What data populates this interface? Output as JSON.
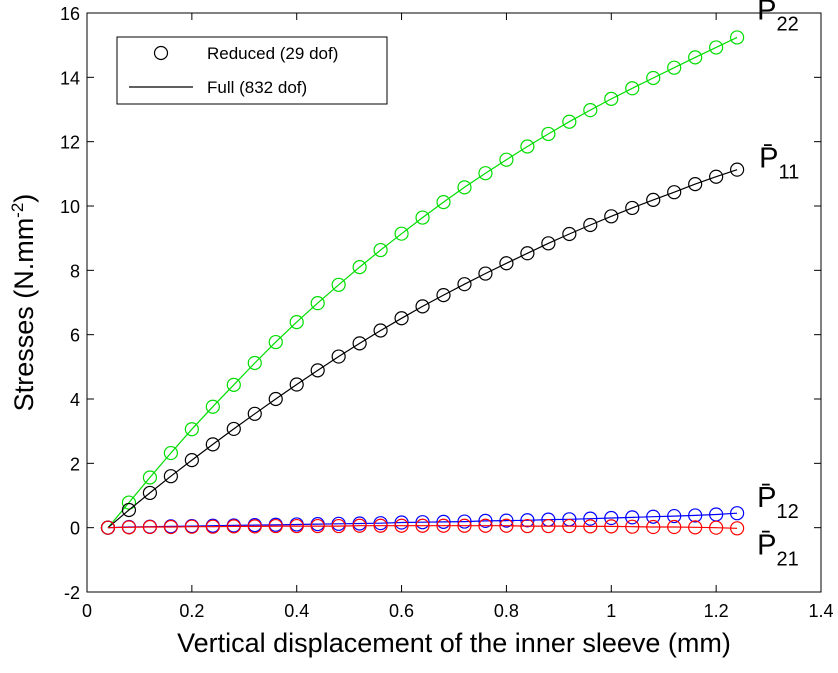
{
  "chart_data": {
    "type": "line",
    "xlabel": "Vertical displacement of the inner sleeve (mm)",
    "ylabel": {
      "main": "Stresses (N.mm",
      "sup": "-2",
      "close": ")"
    },
    "xlim": [
      0,
      1.4
    ],
    "ylim": [
      -2,
      16
    ],
    "x_ticks": [
      0,
      0.2,
      0.4,
      0.6,
      0.8,
      1,
      1.2,
      1.4
    ],
    "x_tick_labels": [
      "0",
      "0.2",
      "0.4",
      "0.6",
      "0.8",
      "1",
      "1.2",
      "1.4"
    ],
    "y_ticks": [
      -2,
      0,
      2,
      4,
      6,
      8,
      10,
      12,
      14,
      16
    ],
    "y_tick_labels": [
      "-2",
      "0",
      "2",
      "4",
      "6",
      "8",
      "10",
      "12",
      "14",
      "16"
    ],
    "grid": false,
    "legend": {
      "placement": "top-left",
      "entries": [
        {
          "label": "Reduced (29 dof)",
          "style": "circle-marker"
        },
        {
          "label": "Full (832 dof)",
          "style": "line"
        }
      ]
    },
    "x": [
      0.04,
      0.08,
      0.12,
      0.16,
      0.2,
      0.24,
      0.28,
      0.32,
      0.36,
      0.4,
      0.44,
      0.48,
      0.52,
      0.56,
      0.6,
      0.64,
      0.68,
      0.72,
      0.76,
      0.8,
      0.84,
      0.88,
      0.92,
      0.96,
      1.0,
      1.04,
      1.08,
      1.12,
      1.16,
      1.2,
      1.24
    ],
    "series": [
      {
        "label_main": "P̄",
        "label_sub": "22",
        "label_anchor": "end",
        "color": "#00dd00",
        "values": [
          0,
          0.78,
          1.56,
          2.32,
          3.06,
          3.76,
          4.44,
          5.12,
          5.77,
          6.39,
          6.98,
          7.55,
          8.1,
          8.63,
          9.14,
          9.64,
          10.12,
          10.58,
          11.02,
          11.44,
          11.85,
          12.24,
          12.62,
          12.98,
          13.33,
          13.66,
          13.98,
          14.3,
          14.62,
          14.93,
          15.24
        ]
      },
      {
        "label_main": "P̄",
        "label_sub": "11",
        "label_anchor": "end",
        "color": "#000000",
        "values": [
          0,
          0.55,
          1.08,
          1.6,
          2.1,
          2.59,
          3.07,
          3.54,
          4.0,
          4.45,
          4.89,
          5.32,
          5.73,
          6.13,
          6.51,
          6.88,
          7.23,
          7.57,
          7.9,
          8.22,
          8.53,
          8.84,
          9.13,
          9.41,
          9.68,
          9.94,
          10.19,
          10.43,
          10.68,
          10.91,
          11.13
        ]
      },
      {
        "label_main": "P̄",
        "label_sub": "12",
        "label_anchor": "end",
        "color": "#0000ff",
        "values": [
          0,
          0.02,
          0.03,
          0.04,
          0.05,
          0.06,
          0.07,
          0.08,
          0.09,
          0.1,
          0.11,
          0.12,
          0.13,
          0.14,
          0.16,
          0.17,
          0.18,
          0.19,
          0.21,
          0.22,
          0.23,
          0.25,
          0.26,
          0.28,
          0.3,
          0.32,
          0.34,
          0.36,
          0.38,
          0.41,
          0.45
        ]
      },
      {
        "label_main": "P̄",
        "label_sub": "21",
        "label_anchor": "end",
        "color": "#ff0000",
        "values": [
          0,
          0.01,
          0.02,
          0.02,
          0.03,
          0.03,
          0.04,
          0.04,
          0.05,
          0.05,
          0.05,
          0.05,
          0.06,
          0.06,
          0.06,
          0.06,
          0.06,
          0.06,
          0.06,
          0.06,
          0.05,
          0.05,
          0.05,
          0.04,
          0.04,
          0.03,
          0.02,
          0.02,
          0.01,
          0.0,
          -0.02
        ]
      }
    ]
  }
}
